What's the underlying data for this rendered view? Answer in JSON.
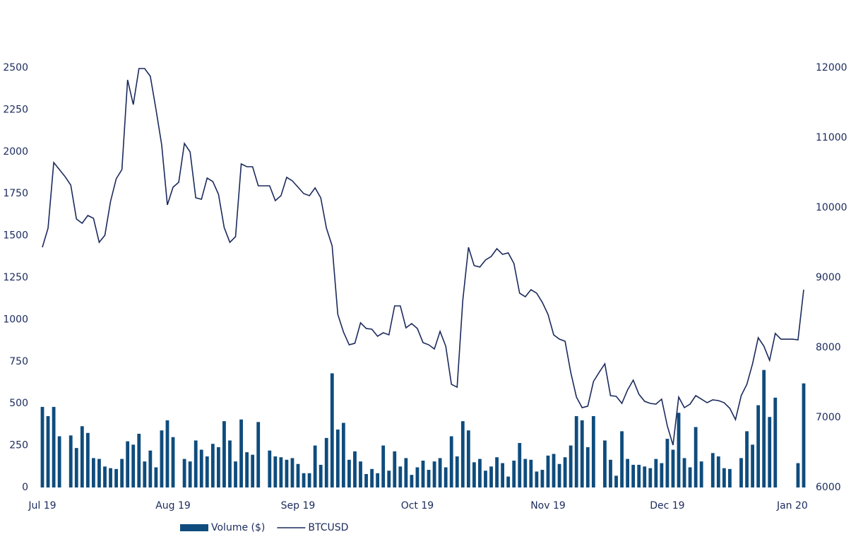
{
  "chart_data": {
    "type": "bar-line",
    "categories": [
      "Jul 19",
      null,
      null,
      null,
      null,
      null,
      null,
      null,
      null,
      null,
      null,
      null,
      null,
      null,
      null,
      null,
      null,
      null,
      null,
      null,
      null,
      null,
      null,
      "Aug 19",
      null,
      null,
      null,
      null,
      null,
      null,
      null,
      null,
      null,
      null,
      null,
      null,
      null,
      null,
      null,
      null,
      null,
      null,
      null,
      null,
      null,
      "Sep 19",
      null,
      null,
      null,
      null,
      null,
      null,
      null,
      null,
      null,
      null,
      null,
      null,
      null,
      null,
      null,
      null,
      null,
      null,
      null,
      null,
      "Oct 19",
      null,
      null,
      null,
      null,
      null,
      null,
      null,
      null,
      null,
      null,
      null,
      null,
      null,
      null,
      null,
      null,
      null,
      null,
      null,
      null,
      null,
      null,
      "Nov 19",
      null,
      null,
      null,
      null,
      null,
      null,
      null,
      null,
      null,
      null,
      null,
      null,
      null,
      null,
      null,
      null,
      null,
      null,
      null,
      null,
      "Dec 19",
      null,
      null,
      null,
      null,
      null,
      null,
      null,
      null,
      null,
      null,
      null,
      null,
      null,
      null,
      null,
      null,
      null,
      null,
      null,
      null,
      null,
      "Jan 20",
      null,
      null
    ],
    "series": [
      {
        "name": "Volume ($)",
        "kind": "bar",
        "color": "#0f4c7d",
        "values": [
          480,
          425,
          480,
          305,
          null,
          310,
          235,
          365,
          325,
          175,
          170,
          125,
          115,
          110,
          170,
          275,
          255,
          320,
          155,
          220,
          120,
          340,
          400,
          300,
          null,
          170,
          155,
          280,
          225,
          185,
          260,
          240,
          395,
          280,
          155,
          405,
          210,
          195,
          390,
          null,
          220,
          185,
          180,
          165,
          175,
          140,
          85,
          85,
          250,
          135,
          295,
          680,
          345,
          385,
          165,
          215,
          155,
          80,
          110,
          85,
          250,
          100,
          215,
          125,
          175,
          75,
          120,
          160,
          105,
          155,
          175,
          120,
          305,
          185,
          395,
          340,
          150,
          170,
          100,
          125,
          180,
          145,
          65,
          160,
          265,
          170,
          165,
          95,
          105,
          190,
          200,
          140,
          180,
          250,
          425,
          400,
          240,
          425,
          null,
          280,
          165,
          70,
          335,
          170,
          135,
          135,
          125,
          115,
          170,
          145,
          290,
          225,
          445,
          175,
          120,
          360,
          155,
          null,
          205,
          185,
          115,
          110,
          null,
          175,
          335,
          255,
          490,
          700,
          420,
          535,
          null,
          null,
          null,
          145,
          620
        ]
      },
      {
        "name": "BTCUSD",
        "kind": "line",
        "axis": "y2",
        "color": "#1b2a5c",
        "values": [
          9434,
          9707,
          10646,
          10545,
          10444,
          10323,
          9838,
          9778,
          9889,
          9848,
          9505,
          9606,
          10091,
          10414,
          10545,
          11828,
          11475,
          11990,
          11990,
          11879,
          11404,
          10899,
          10040,
          10293,
          10364,
          10919,
          10798,
          10141,
          10121,
          10424,
          10374,
          10192,
          9717,
          9505,
          9586,
          10626,
          10586,
          10586,
          10313,
          10313,
          10313,
          10101,
          10172,
          10434,
          10384,
          10293,
          10202,
          10172,
          10283,
          10141,
          9707,
          9455,
          8475,
          8222,
          8040,
          8061,
          8354,
          8273,
          8263,
          8162,
          8212,
          8182,
          8596,
          8596,
          8283,
          8343,
          8273,
          8071,
          8040,
          7980,
          8232,
          8020,
          7475,
          7434,
          8677,
          9434,
          9172,
          9152,
          9253,
          9303,
          9414,
          9333,
          9354,
          9202,
          8778,
          8727,
          8828,
          8778,
          8646,
          8475,
          8182,
          8121,
          8091,
          7646,
          7293,
          7141,
          7162,
          7515,
          7646,
          7768,
          7313,
          7303,
          7202,
          7394,
          7535,
          7333,
          7232,
          7202,
          7192,
          7263,
          6879,
          6606,
          7293,
          7141,
          7192,
          7313,
          7263,
          7212,
          7253,
          7242,
          7212,
          7131,
          6970,
          7313,
          7475,
          7768,
          8141,
          8020,
          7818,
          8202,
          8121,
          8121,
          8121,
          8111,
          8828
        ]
      }
    ],
    "ylim": [
      0,
      2500
    ],
    "yticks": [
      0,
      250,
      500,
      750,
      1000,
      1250,
      1500,
      1750,
      2000,
      2250,
      2500
    ],
    "y2lim": [
      6000,
      12000
    ],
    "y2ticks": [
      6000,
      7000,
      8000,
      9000,
      10000,
      11000,
      12000
    ],
    "grid": false,
    "legend": "bottom"
  }
}
